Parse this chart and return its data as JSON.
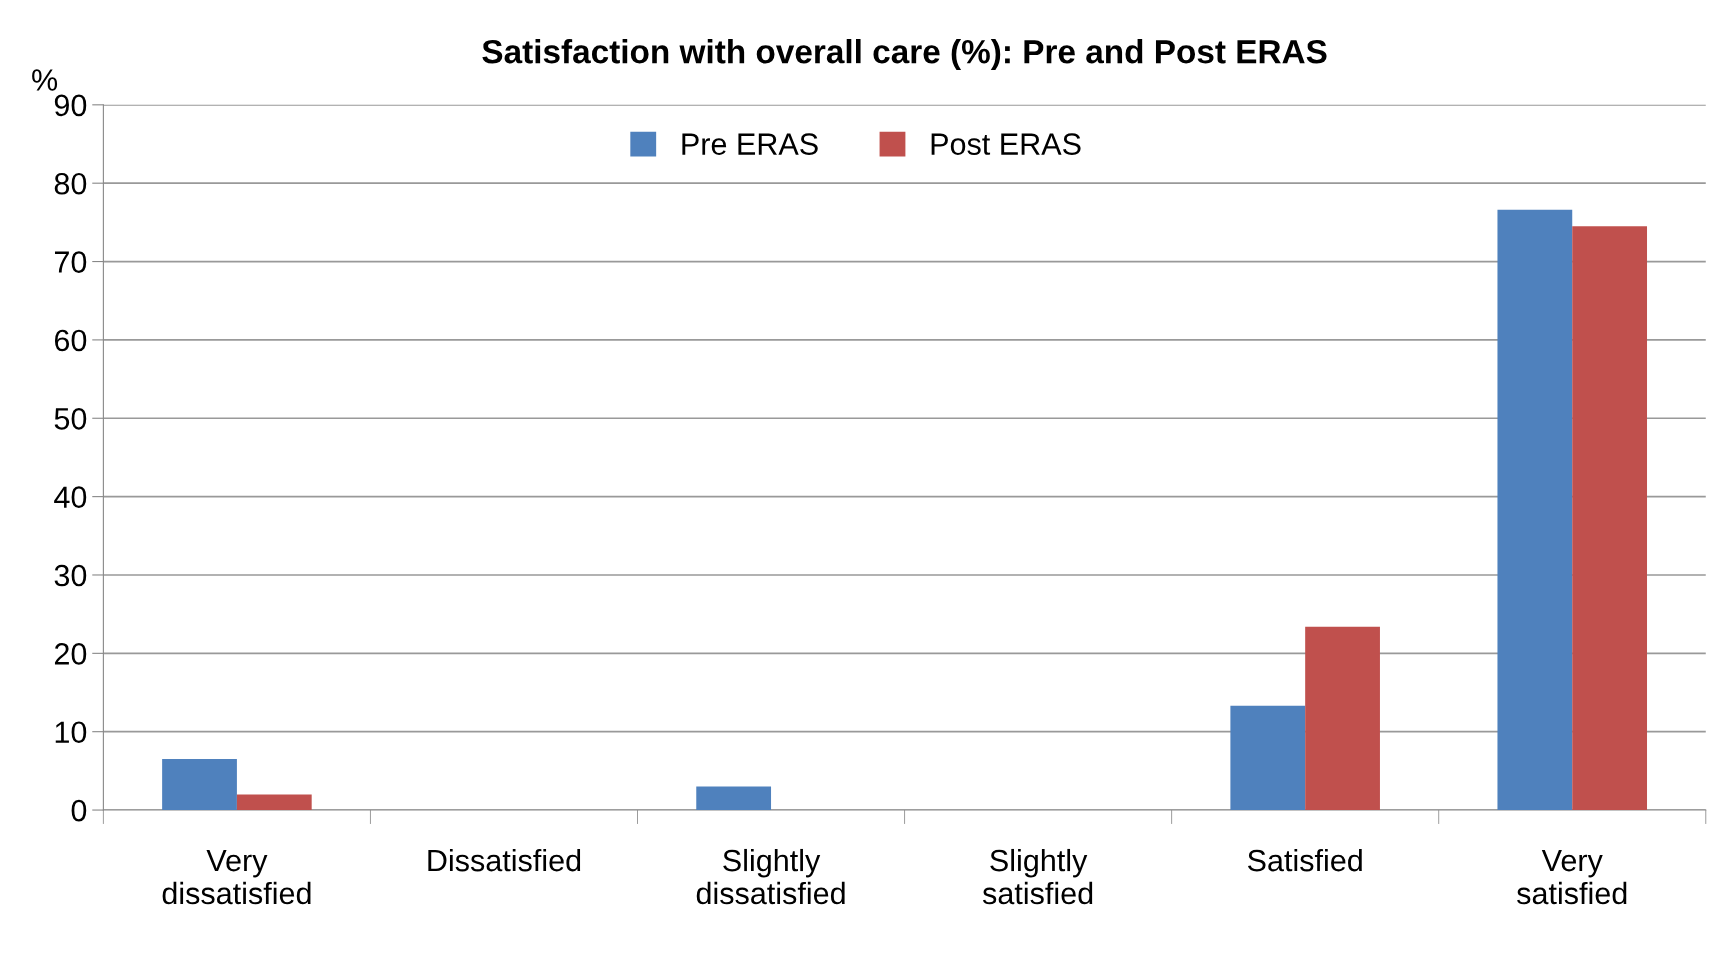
{
  "chart_data": {
    "type": "bar",
    "title": "Satisfaction with overall care (%): Pre and Post ERAS",
    "ylabel": "%",
    "categories": [
      "Very\ndissatisfied",
      "Dissatisfied",
      "Slightly\ndissatisfied",
      "Slightly\nsatisfied",
      "Satisfied",
      "Very\nsatisfied"
    ],
    "series": [
      {
        "name": "Pre ERAS",
        "color": "#4f81bd",
        "values": [
          6.5,
          0,
          3.0,
          0,
          13.3,
          76.6
        ]
      },
      {
        "name": "Post ERAS",
        "color": "#c0504d",
        "values": [
          2.0,
          0,
          0,
          0,
          23.4,
          74.5
        ]
      }
    ],
    "ylim": [
      0,
      90
    ],
    "yticks": [
      0,
      10,
      20,
      30,
      40,
      50,
      60,
      70,
      80,
      90
    ],
    "grid": "y",
    "legend": "top"
  }
}
